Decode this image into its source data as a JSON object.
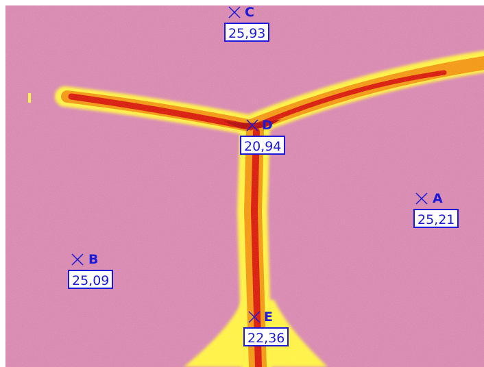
{
  "image": {
    "description_colors": {
      "background": "#d98bb2",
      "hot_core": "#d92010",
      "mid": "#f39a18",
      "outer": "#fff24a"
    }
  },
  "markers": [
    {
      "id": "A",
      "label": "A",
      "value": "25,21"
    },
    {
      "id": "B",
      "label": "B",
      "value": "25,09"
    },
    {
      "id": "C",
      "label": "C",
      "value": "25,93"
    },
    {
      "id": "D",
      "label": "D",
      "value": "20,94"
    },
    {
      "id": "E",
      "label": "E",
      "value": "22,36"
    }
  ]
}
